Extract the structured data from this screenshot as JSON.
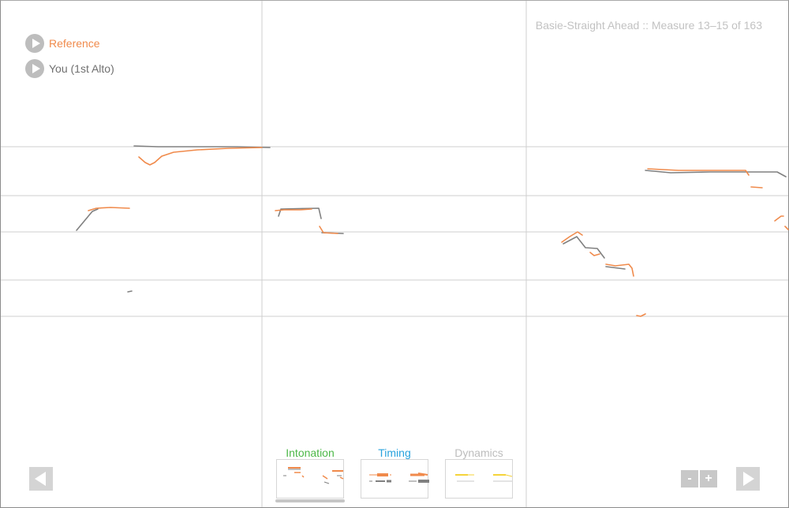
{
  "legend": {
    "reference": {
      "label": "Reference",
      "color": "#f08a4b"
    },
    "you": {
      "label": "You (1st Alto)",
      "color": "#808080"
    }
  },
  "song_title": "Basie-Straight Ahead :: Measure 13–15 of 163",
  "tabs": [
    {
      "label": "Intonation",
      "color": "#4db848",
      "active": true
    },
    {
      "label": "Timing",
      "color": "#29a3dd",
      "active": false
    },
    {
      "label": "Dynamics",
      "color": "#bdbdbd",
      "active": false
    }
  ],
  "controls": {
    "prev_icon": "left-triangle-icon",
    "next_icon": "right-triangle-icon",
    "zoom_out": "-",
    "zoom_in": "+"
  },
  "colors": {
    "reference": "#f08a4b",
    "performance": "#808080",
    "gridline": "#cfcfcf",
    "timing": "#29a3dd",
    "dynamics": "#f5d33a"
  }
}
